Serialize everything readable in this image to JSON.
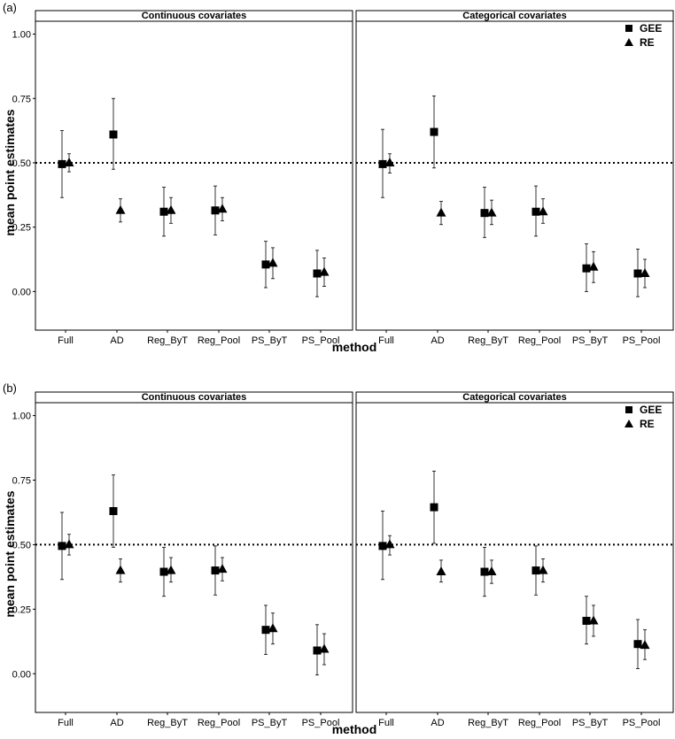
{
  "figure_labels": [
    "(a)",
    "(b)"
  ],
  "legend": {
    "entries": [
      {
        "name": "GEE",
        "shape": "square"
      },
      {
        "name": "RE",
        "shape": "triangle"
      }
    ]
  },
  "reference_line": 0.5,
  "colors": {
    "marks": "#000000",
    "axes": "#000000",
    "background": "#ffffff"
  },
  "chart_data": [
    {
      "figure": "(a)",
      "facet": "Continuous covariates",
      "type": "scatter",
      "xlabel": "method",
      "ylabel": "mean point estimates",
      "categories": [
        "Full",
        "AD",
        "Reg_ByT",
        "Reg_Pool",
        "PS_ByT",
        "PS_Pool"
      ],
      "ylim": [
        -0.15,
        1.05
      ],
      "yticks": [
        "0.00",
        "0.25",
        "0.50",
        "0.75",
        "1.00"
      ],
      "series": [
        {
          "name": "GEE",
          "values": [
            0.495,
            0.61,
            0.31,
            0.315,
            0.105,
            0.07
          ],
          "lower": [
            0.365,
            0.475,
            0.215,
            0.22,
            0.015,
            -0.02
          ],
          "upper": [
            0.625,
            0.75,
            0.405,
            0.41,
            0.195,
            0.16
          ]
        },
        {
          "name": "RE",
          "values": [
            0.5,
            0.315,
            0.315,
            0.32,
            0.11,
            0.075
          ],
          "lower": [
            0.465,
            0.27,
            0.265,
            0.275,
            0.05,
            0.02
          ],
          "upper": [
            0.535,
            0.36,
            0.365,
            0.365,
            0.17,
            0.13
          ]
        }
      ]
    },
    {
      "figure": "(a)",
      "facet": "Categorical covariates",
      "type": "scatter",
      "xlabel": "method",
      "ylabel": "mean point estimates",
      "categories": [
        "Full",
        "AD",
        "Reg_ByT",
        "Reg_Pool",
        "PS_ByT",
        "PS_Pool"
      ],
      "ylim": [
        -0.15,
        1.05
      ],
      "yticks": [
        "0.00",
        "0.25",
        "0.50",
        "0.75",
        "1.00"
      ],
      "series": [
        {
          "name": "GEE",
          "values": [
            0.495,
            0.62,
            0.305,
            0.31,
            0.09,
            0.07
          ],
          "lower": [
            0.365,
            0.48,
            0.21,
            0.215,
            0.0,
            -0.02
          ],
          "upper": [
            0.63,
            0.76,
            0.405,
            0.41,
            0.185,
            0.165
          ]
        },
        {
          "name": "RE",
          "values": [
            0.5,
            0.305,
            0.305,
            0.31,
            0.095,
            0.07
          ],
          "lower": [
            0.46,
            0.26,
            0.26,
            0.265,
            0.035,
            0.015
          ],
          "upper": [
            0.535,
            0.35,
            0.355,
            0.36,
            0.155,
            0.125
          ]
        }
      ]
    },
    {
      "figure": "(b)",
      "facet": "Continuous covariates",
      "type": "scatter",
      "xlabel": "method",
      "ylabel": "mean point estimates",
      "categories": [
        "Full",
        "AD",
        "Reg_ByT",
        "Reg_Pool",
        "PS_ByT",
        "PS_Pool"
      ],
      "ylim": [
        -0.15,
        1.05
      ],
      "yticks": [
        "0.00",
        "0.25",
        "0.50",
        "0.75",
        "1.00"
      ],
      "series": [
        {
          "name": "GEE",
          "values": [
            0.495,
            0.63,
            0.395,
            0.4,
            0.17,
            0.09
          ],
          "lower": [
            0.365,
            0.49,
            0.3,
            0.305,
            0.075,
            -0.005
          ],
          "upper": [
            0.625,
            0.77,
            0.49,
            0.495,
            0.265,
            0.19
          ]
        },
        {
          "name": "RE",
          "values": [
            0.5,
            0.4,
            0.4,
            0.405,
            0.175,
            0.095
          ],
          "lower": [
            0.46,
            0.355,
            0.355,
            0.36,
            0.115,
            0.035
          ],
          "upper": [
            0.54,
            0.445,
            0.45,
            0.45,
            0.235,
            0.155
          ]
        }
      ]
    },
    {
      "figure": "(b)",
      "facet": "Categorical covariates",
      "type": "scatter",
      "xlabel": "method",
      "ylabel": "mean point estimates",
      "categories": [
        "Full",
        "AD",
        "Reg_ByT",
        "Reg_Pool",
        "PS_ByT",
        "PS_Pool"
      ],
      "ylim": [
        -0.15,
        1.05
      ],
      "yticks": [
        "0.00",
        "0.25",
        "0.50",
        "0.75",
        "1.00"
      ],
      "series": [
        {
          "name": "GEE",
          "values": [
            0.495,
            0.645,
            0.395,
            0.4,
            0.205,
            0.115
          ],
          "lower": [
            0.365,
            0.505,
            0.3,
            0.305,
            0.115,
            0.02
          ],
          "upper": [
            0.63,
            0.785,
            0.49,
            0.495,
            0.3,
            0.21
          ]
        },
        {
          "name": "RE",
          "values": [
            0.5,
            0.395,
            0.395,
            0.4,
            0.205,
            0.11
          ],
          "lower": [
            0.46,
            0.355,
            0.35,
            0.355,
            0.145,
            0.055
          ],
          "upper": [
            0.535,
            0.44,
            0.44,
            0.445,
            0.265,
            0.17
          ]
        }
      ]
    }
  ]
}
